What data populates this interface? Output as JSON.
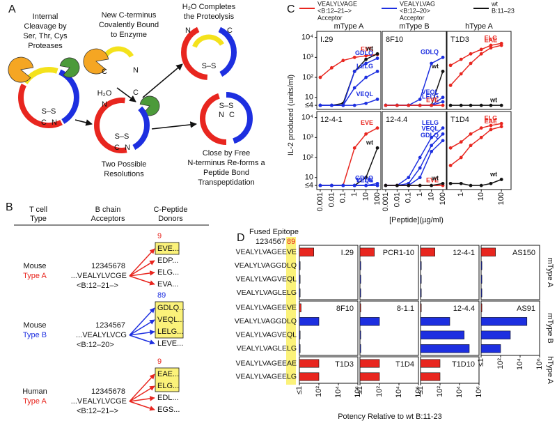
{
  "panel_a": {
    "label": "A",
    "step1": [
      "Internal",
      "Cleavage by",
      "Ser, Thr, Cys",
      "Proteases"
    ],
    "step2": [
      "New C-terminus",
      "Covalently Bound",
      "to Enzyme"
    ],
    "step3": [
      "H₂O Completes",
      "the Proteolysis"
    ],
    "step4": [
      "Two Possible",
      "Resolutions"
    ],
    "step5": [
      "Close by Free",
      "N-terminus Re-forms a",
      "Peptide Bond",
      "Transpeptidation"
    ],
    "water": "H₂O",
    "c_label": "C",
    "n_label": "N",
    "disulfide": "S–S"
  },
  "panel_b": {
    "label": "B",
    "headers": [
      [
        "T cell",
        "Type"
      ],
      [
        "B chain",
        "Acceptors"
      ],
      [
        "C-Peptide",
        "Donors"
      ]
    ],
    "groups": [
      {
        "species": "Mouse",
        "type": "Type A",
        "color": "#e8261f",
        "positions": "12345678",
        "acceptor": "...VEALYLVCGE",
        "range": "<B:12–21–>",
        "donor_position": "9",
        "donors": [
          "EVE...",
          "EDP...",
          "ELG...",
          "EVA..."
        ]
      },
      {
        "species": "Mouse",
        "type": "Type B",
        "color": "#1d2fe0",
        "positions": "1234567",
        "acceptor": "...VEALYLVCG",
        "range": "<B:12–20>",
        "donor_position": "89",
        "donors": [
          "GDLQ...",
          "VEQL...",
          "LELG...",
          "LEVE..."
        ]
      },
      {
        "species": "Human",
        "type": "Type A",
        "color": "#e8261f",
        "positions": "12345678",
        "acceptor": "...VEALYLVCGE",
        "range": "<B:12–21–>",
        "donor_position": "9",
        "donors": [
          "EAE...",
          "ELG...",
          "EDL...",
          "EGS..."
        ]
      }
    ]
  },
  "panel_c": {
    "label": "C",
    "legend": [
      {
        "lines": [
          "VEALYLVAGE",
          "<B:12–21–>",
          "Acceptor"
        ],
        "color": "#e8261f"
      },
      {
        "lines": [
          "VEALYLVAG",
          "<B:12–20>",
          "Acceptor"
        ],
        "color": "#1d2fe0"
      },
      {
        "lines": [
          "wt",
          "B:11–23"
        ],
        "color": "#111111"
      }
    ],
    "columns": [
      "mType A",
      "mType B",
      "hType A"
    ],
    "ylabel": "IL-2 produced (units/ml)",
    "xlabel": "[Peptide](µg/ml)"
  },
  "panel_d": {
    "label": "D",
    "fused_label": "Fused Epitope",
    "positions": "1234567",
    "positions_hl": "89",
    "row_labels": [
      "mType A",
      "mType B",
      "hType A"
    ],
    "xlabel": "Potency Relative to wt B:11-23"
  },
  "chart_data": [
    {
      "type": "line",
      "title": "I.29",
      "x": [
        0.001,
        0.01,
        0.1,
        1,
        10,
        100
      ],
      "series": [
        {
          "name": "EVE",
          "color": "#e8261f",
          "values": [
            100,
            300,
            700,
            1000,
            1200,
            1400
          ]
        },
        {
          "name": "wt",
          "color": "#111111",
          "values": [
            4,
            4,
            5,
            200,
            800,
            1500
          ]
        },
        {
          "name": "GDLQ",
          "color": "#1d2fe0",
          "values": [
            4,
            4,
            4,
            200,
            500,
            900
          ]
        },
        {
          "name": "LELG",
          "color": "#1d2fe0",
          "values": [
            4,
            4,
            4,
            30,
            100,
            200
          ]
        },
        {
          "name": "VEQL",
          "color": "#1d2fe0",
          "values": [
            4,
            4,
            4,
            4,
            5,
            8
          ]
        }
      ],
      "xlim": [
        0.0005,
        200
      ],
      "ylim": [
        2.5,
        20000
      ],
      "log_x": true,
      "log_y": true,
      "yticks": [
        {
          "value": 4,
          "label": "≤4"
        },
        10,
        {
          "value": 100,
          "label": "10²"
        },
        {
          "value": 1000,
          "label": "10³"
        },
        {
          "value": 10000,
          "label": "10⁴"
        }
      ]
    },
    {
      "type": "line",
      "title": "8F10",
      "x": [
        0.001,
        0.01,
        0.1,
        1,
        10,
        100
      ],
      "series": [
        {
          "name": "GDLQ",
          "color": "#1d2fe0",
          "values": [
            4,
            4,
            4,
            8,
            500,
            1000
          ]
        },
        {
          "name": "wt",
          "color": "#111111",
          "values": [
            4,
            4,
            4,
            4,
            4,
            200
          ]
        },
        {
          "name": "VEQL",
          "color": "#1d2fe0",
          "values": [
            4,
            4,
            4,
            4,
            4,
            10
          ]
        },
        {
          "name": "LELG",
          "color": "#1d2fe0",
          "values": [
            4,
            4,
            4,
            4,
            4,
            6
          ]
        },
        {
          "name": "EVE",
          "color": "#e8261f",
          "values": [
            4,
            4,
            4,
            4,
            4,
            4
          ]
        }
      ],
      "xlim": [
        0.0005,
        200
      ],
      "ylim": [
        2.5,
        20000
      ],
      "log_x": true,
      "log_y": true
    },
    {
      "type": "line",
      "title": "T1D3",
      "x": [
        0.3,
        1,
        3,
        10,
        30,
        100
      ],
      "series": [
        {
          "name": "ELG",
          "color": "#e8261f",
          "values": [
            400,
            800,
            1500,
            2500,
            4000,
            5000
          ]
        },
        {
          "name": "EAE",
          "color": "#e8261f",
          "values": [
            40,
            150,
            500,
            1500,
            3000,
            4000
          ]
        },
        {
          "name": "wt",
          "color": "#111111",
          "values": [
            4,
            4,
            4,
            4,
            4,
            4
          ]
        }
      ],
      "xlim": [
        0.2,
        300
      ],
      "ylim": [
        2.5,
        20000
      ],
      "log_x": true,
      "log_y": true
    },
    {
      "type": "line",
      "title": "12-4-1",
      "x": [
        0.001,
        0.01,
        0.1,
        1,
        10,
        100
      ],
      "series": [
        {
          "name": "EVE",
          "color": "#e8261f",
          "values": [
            4,
            4,
            4,
            300,
            1500,
            3000
          ]
        },
        {
          "name": "wt",
          "color": "#111111",
          "values": [
            4,
            4,
            4,
            4,
            10,
            300
          ]
        },
        {
          "name": "GDLQ",
          "color": "#1d2fe0",
          "values": [
            4,
            4,
            4,
            4,
            4,
            5
          ]
        },
        {
          "name": "VEQL",
          "color": "#1d2fe0",
          "values": [
            4,
            4,
            4,
            4,
            4,
            4
          ]
        },
        {
          "name": "LELG",
          "color": "#1d2fe0",
          "values": [
            4,
            4,
            4,
            4,
            4,
            4
          ]
        }
      ],
      "xlim": [
        0.0005,
        200
      ],
      "ylim": [
        2.5,
        20000
      ],
      "log_x": true,
      "log_y": true,
      "xticks": [
        0.001,
        0.01,
        0.1,
        1,
        10,
        100
      ],
      "yticks": [
        {
          "value": 4,
          "label": "≤4"
        },
        10,
        {
          "value": 100,
          "label": "10²"
        },
        {
          "value": 1000,
          "label": "10³"
        },
        {
          "value": 10000,
          "label": "10⁴"
        }
      ]
    },
    {
      "type": "line",
      "title": "12-4.4",
      "x": [
        0.001,
        0.01,
        0.1,
        1,
        10,
        100
      ],
      "series": [
        {
          "name": "LELG",
          "color": "#1d2fe0",
          "values": [
            4,
            4,
            10,
            100,
            1000,
            3000
          ]
        },
        {
          "name": "VEQL",
          "color": "#1d2fe0",
          "values": [
            4,
            4,
            5,
            30,
            400,
            1500
          ]
        },
        {
          "name": "GDLQ",
          "color": "#1d2fe0",
          "values": [
            4,
            4,
            4,
            10,
            200,
            700
          ]
        },
        {
          "name": "EVE",
          "color": "#e8261f",
          "values": [
            4,
            4,
            4,
            4,
            4,
            4
          ]
        },
        {
          "name": "wt",
          "color": "#111111",
          "values": [
            4,
            4,
            4,
            4,
            4,
            5
          ]
        }
      ],
      "xlim": [
        0.0005,
        200
      ],
      "ylim": [
        2.5,
        20000
      ],
      "log_x": true,
      "log_y": true,
      "xticks": [
        0.001,
        0.01,
        0.1,
        1,
        10,
        100
      ]
    },
    {
      "type": "line",
      "title": "T1D4",
      "x": [
        0.3,
        1,
        3,
        10,
        30,
        100
      ],
      "series": [
        {
          "name": "ELG",
          "color": "#e8261f",
          "values": [
            300,
            600,
            1500,
            3000,
            4000,
            5000
          ]
        },
        {
          "name": "EAE",
          "color": "#e8261f",
          "values": [
            40,
            100,
            400,
            1000,
            2500,
            3500
          ]
        },
        {
          "name": "wt",
          "color": "#111111",
          "values": [
            5,
            5,
            4,
            4,
            5,
            8
          ]
        }
      ],
      "xlim": [
        0.2,
        300
      ],
      "ylim": [
        2.5,
        20000
      ],
      "log_x": true,
      "log_y": true,
      "xticks": [
        1,
        10,
        100
      ]
    },
    {
      "type": "bar",
      "title": "I.29",
      "categories": [
        "VEALYLVAGEEVE",
        "VEALYLVAGGDLQ",
        "VEALYLVAGVEQL",
        "VEALYLVAGLELG"
      ],
      "values": [
        30,
        1.2,
        1.2,
        1.2
      ],
      "colors": [
        "#e8261f",
        "#1d2fe0",
        "#1d2fe0",
        "#1d2fe0"
      ],
      "xlim": [
        1,
        1000000
      ],
      "log_x": true
    },
    {
      "type": "bar",
      "title": "PCR1-10",
      "values": [
        30,
        1.2,
        1.2,
        1.2
      ],
      "colors": [
        "#e8261f",
        "#1d2fe0",
        "#1d2fe0",
        "#1d2fe0"
      ],
      "xlim": [
        1,
        1000000
      ],
      "log_x": true
    },
    {
      "type": "bar",
      "title": "12-4-1",
      "values": [
        30,
        1.2,
        1.2,
        1.2
      ],
      "colors": [
        "#e8261f",
        "#1d2fe0",
        "#1d2fe0",
        "#1d2fe0"
      ],
      "xlim": [
        1,
        1000000
      ],
      "log_x": true
    },
    {
      "type": "bar",
      "title": "AS150",
      "values": [
        30,
        1.2,
        1.2,
        1.2
      ],
      "colors": [
        "#e8261f",
        "#1d2fe0",
        "#1d2fe0",
        "#1d2fe0"
      ],
      "xlim": [
        1,
        1000000
      ],
      "log_x": true
    },
    {
      "type": "bar",
      "title": "8F10",
      "categories": [
        "VEALYLVAGEEVE",
        "VEALYLVAGGDLQ",
        "VEALYLVAGVEQL",
        "VEALYLVAGLELG"
      ],
      "values": [
        1.5,
        100,
        1.2,
        1.2
      ],
      "colors": [
        "#e8261f",
        "#1d2fe0",
        "#1d2fe0",
        "#1d2fe0"
      ],
      "xlim": [
        1,
        1000000
      ],
      "log_x": true
    },
    {
      "type": "bar",
      "title": "8-1.1",
      "values": [
        1.2,
        100,
        1.2,
        1.2
      ],
      "colors": [
        "#e8261f",
        "#1d2fe0",
        "#1d2fe0",
        "#1d2fe0"
      ],
      "xlim": [
        1,
        1000000
      ],
      "log_x": true
    },
    {
      "type": "bar",
      "title": "12-4.4",
      "values": [
        1.2,
        1000,
        30000,
        100000
      ],
      "colors": [
        "#e8261f",
        "#1d2fe0",
        "#1d2fe0",
        "#1d2fe0"
      ],
      "xlim": [
        1,
        1000000
      ],
      "log_x": true
    },
    {
      "type": "bar",
      "title": "AS91",
      "values": [
        1.2,
        50000,
        1000,
        100
      ],
      "colors": [
        "#e8261f",
        "#1d2fe0",
        "#1d2fe0",
        "#1d2fe0"
      ],
      "xlim": [
        1,
        1000000
      ],
      "log_x": true,
      "xticks": [
        {
          "value": 1,
          "label": "≤1"
        },
        {
          "value": 100,
          "label": "10²"
        },
        {
          "value": 10000,
          "label": "10⁴"
        },
        {
          "value": 1000000,
          "label": "10⁶"
        }
      ]
    },
    {
      "type": "bar",
      "title": "T1D3",
      "categories": [
        "VEALYLVAGEEAE",
        "VEALYLVAGEELG"
      ],
      "values": [
        100,
        100
      ],
      "colors": [
        "#e8261f",
        "#e8261f"
      ],
      "xlim": [
        1,
        1000000
      ],
      "log_x": true,
      "xticks": [
        {
          "value": 1,
          "label": "≤1"
        },
        {
          "value": 100,
          "label": "10²"
        },
        {
          "value": 10000,
          "label": "10⁴"
        },
        {
          "value": 1000000,
          "label": "10⁶"
        }
      ]
    },
    {
      "type": "bar",
      "title": "T1D4",
      "values": [
        100,
        100
      ],
      "colors": [
        "#e8261f",
        "#e8261f"
      ],
      "xlim": [
        1,
        1000000
      ],
      "log_x": true,
      "xticks": [
        {
          "value": 1,
          "label": "≤1"
        },
        {
          "value": 100,
          "label": "10²"
        },
        {
          "value": 10000,
          "label": "10⁴"
        },
        {
          "value": 1000000,
          "label": "10⁶"
        }
      ]
    },
    {
      "type": "bar",
      "title": "T1D10",
      "values": [
        100,
        100
      ],
      "colors": [
        "#e8261f",
        "#e8261f"
      ],
      "xlim": [
        1,
        1000000
      ],
      "log_x": true,
      "xticks": [
        {
          "value": 1,
          "label": "≤1"
        },
        {
          "value": 100,
          "label": "10²"
        },
        {
          "value": 10000,
          "label": "10⁴"
        },
        {
          "value": 1000000,
          "label": "10⁶"
        }
      ]
    }
  ]
}
